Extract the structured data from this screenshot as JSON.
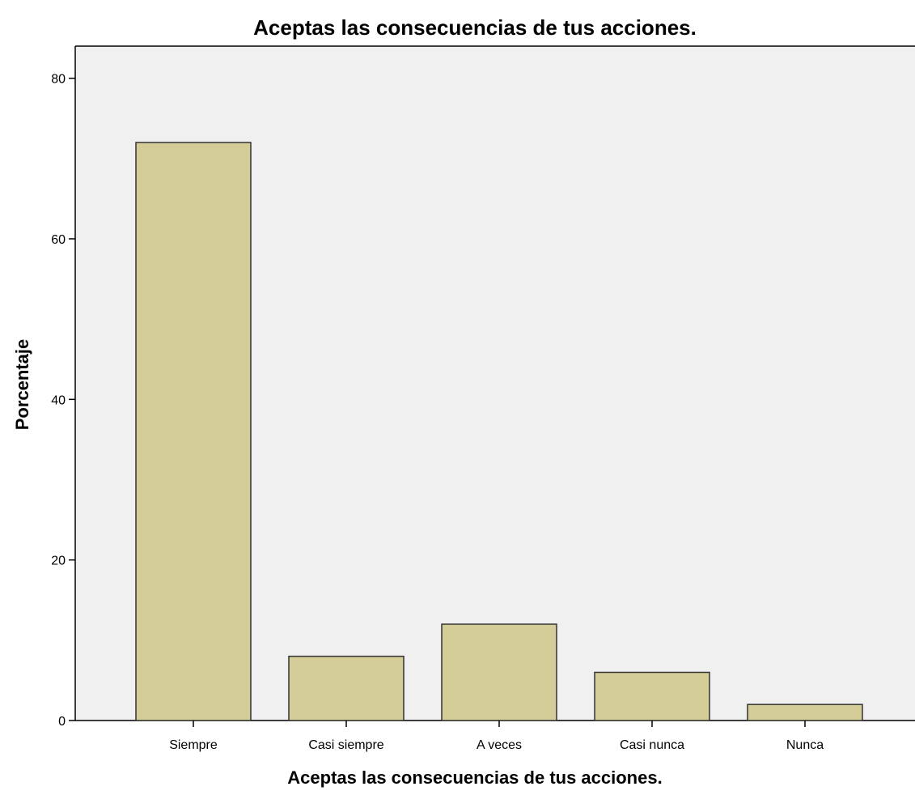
{
  "chart_data": {
    "type": "bar",
    "title": "Aceptas las consecuencias de tus acciones.",
    "xlabel": "Aceptas las consecuencias de tus acciones.",
    "ylabel": "Porcentaje",
    "categories": [
      "Siempre",
      "Casi siempre",
      "A veces",
      "Casi nunca",
      "Nunca"
    ],
    "values": [
      72,
      8,
      12,
      6,
      2
    ],
    "ylim": [
      0,
      84
    ],
    "yticks": [
      "0",
      "20",
      "40",
      "60",
      "80"
    ],
    "grid": false,
    "legend": "none",
    "colors": {
      "bar_fill": "#d4cd97",
      "bar_stroke": "#333333",
      "plot_background": "#f0f0f0",
      "axis": "#000000"
    }
  }
}
